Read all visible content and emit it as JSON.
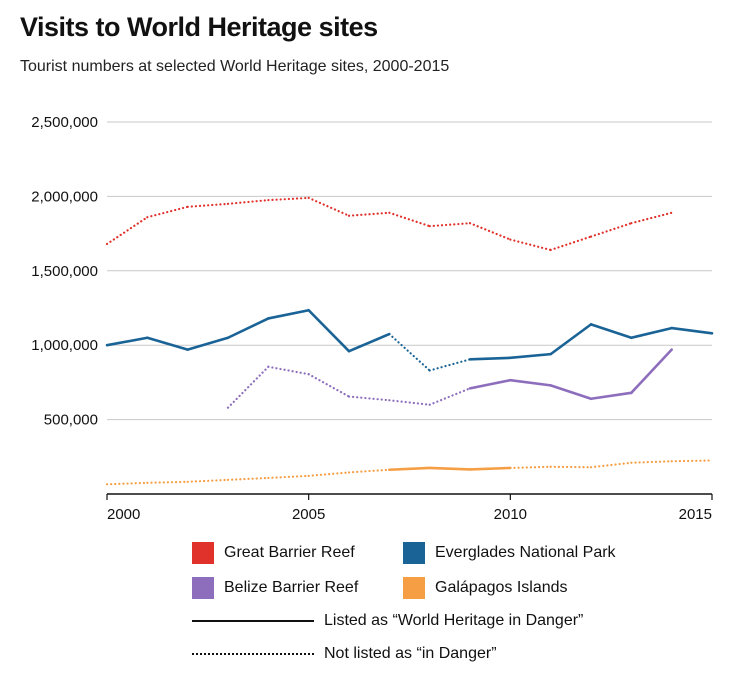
{
  "title": "Visits to World Heritage sites",
  "subtitle": "Tourist numbers at selected World Heritage sites, 2000-2015",
  "legend": {
    "great_barrier_reef": "Great Barrier Reef",
    "everglades": "Everglades National Park",
    "belize": "Belize Barrier Reef",
    "galapagos": "Galápagos Islands",
    "in_danger": "Listed as “World Heritage in Danger”",
    "not_in_danger": "Not listed as “in Danger”"
  },
  "chart_data": {
    "type": "line",
    "xlim": [
      2000,
      2015
    ],
    "ylim": [
      0,
      2500000
    ],
    "x_ticks": [
      2000,
      2005,
      2010,
      2015
    ],
    "x_tick_labels": [
      "2000",
      "2005",
      "2010",
      "2015"
    ],
    "y_ticks": [
      500000,
      1000000,
      1500000,
      2000000,
      2500000
    ],
    "y_tick_labels": [
      "500,000",
      "1,000,000",
      "1,500,000",
      "2,000,000",
      "2,500,000"
    ],
    "grid": true,
    "series": [
      {
        "name": "Great Barrier Reef",
        "color": "#e0312b",
        "points": [
          {
            "x": 2000,
            "y": 1680000,
            "style": "dotted"
          },
          {
            "x": 2001,
            "y": 1860000,
            "style": "dotted"
          },
          {
            "x": 2002,
            "y": 1930000,
            "style": "dotted"
          },
          {
            "x": 2003,
            "y": 1950000,
            "style": "dotted"
          },
          {
            "x": 2004,
            "y": 1975000,
            "style": "dotted"
          },
          {
            "x": 2005,
            "y": 1990000,
            "style": "dotted"
          },
          {
            "x": 2006,
            "y": 1870000,
            "style": "dotted"
          },
          {
            "x": 2007,
            "y": 1890000,
            "style": "dotted"
          },
          {
            "x": 2008,
            "y": 1800000,
            "style": "dotted"
          },
          {
            "x": 2009,
            "y": 1820000,
            "style": "dotted"
          },
          {
            "x": 2010,
            "y": 1710000,
            "style": "dotted"
          },
          {
            "x": 2011,
            "y": 1640000,
            "style": "dotted"
          },
          {
            "x": 2012,
            "y": 1730000,
            "style": "dotted"
          },
          {
            "x": 2013,
            "y": 1820000,
            "style": "dotted"
          },
          {
            "x": 2014,
            "y": 1890000
          }
        ]
      },
      {
        "name": "Everglades National Park",
        "color": "#1a6396",
        "points": [
          {
            "x": 2000,
            "y": 1000000,
            "style": "solid"
          },
          {
            "x": 2001,
            "y": 1050000,
            "style": "solid"
          },
          {
            "x": 2002,
            "y": 970000,
            "style": "solid"
          },
          {
            "x": 2003,
            "y": 1050000,
            "style": "solid"
          },
          {
            "x": 2004,
            "y": 1180000,
            "style": "solid"
          },
          {
            "x": 2005,
            "y": 1235000,
            "style": "solid"
          },
          {
            "x": 2006,
            "y": 960000,
            "style": "solid"
          },
          {
            "x": 2007,
            "y": 1075000,
            "style": "dotted"
          },
          {
            "x": 2008,
            "y": 830000,
            "style": "dotted"
          },
          {
            "x": 2009,
            "y": 905000,
            "style": "solid"
          },
          {
            "x": 2010,
            "y": 915000,
            "style": "solid"
          },
          {
            "x": 2011,
            "y": 940000,
            "style": "solid"
          },
          {
            "x": 2012,
            "y": 1140000,
            "style": "solid"
          },
          {
            "x": 2013,
            "y": 1050000,
            "style": "solid"
          },
          {
            "x": 2014,
            "y": 1115000,
            "style": "solid"
          },
          {
            "x": 2015,
            "y": 1080000
          }
        ]
      },
      {
        "name": "Belize Barrier Reef",
        "color": "#8d6ebc",
        "points": [
          {
            "x": 2003,
            "y": 580000,
            "style": "dotted"
          },
          {
            "x": 2004,
            "y": 855000,
            "style": "dotted"
          },
          {
            "x": 2005,
            "y": 805000,
            "style": "dotted"
          },
          {
            "x": 2006,
            "y": 655000,
            "style": "dotted"
          },
          {
            "x": 2007,
            "y": 630000,
            "style": "dotted"
          },
          {
            "x": 2008,
            "y": 600000,
            "style": "dotted"
          },
          {
            "x": 2009,
            "y": 710000,
            "style": "solid"
          },
          {
            "x": 2010,
            "y": 765000,
            "style": "solid"
          },
          {
            "x": 2011,
            "y": 730000,
            "style": "solid"
          },
          {
            "x": 2012,
            "y": 640000,
            "style": "solid"
          },
          {
            "x": 2013,
            "y": 680000,
            "style": "solid"
          },
          {
            "x": 2014,
            "y": 970000
          }
        ]
      },
      {
        "name": "Galápagos Islands",
        "color": "#f59e44",
        "points": [
          {
            "x": 2000,
            "y": 65000,
            "style": "dotted"
          },
          {
            "x": 2001,
            "y": 75000,
            "style": "dotted"
          },
          {
            "x": 2002,
            "y": 82000,
            "style": "dotted"
          },
          {
            "x": 2003,
            "y": 95000,
            "style": "dotted"
          },
          {
            "x": 2004,
            "y": 108000,
            "style": "dotted"
          },
          {
            "x": 2005,
            "y": 122000,
            "style": "dotted"
          },
          {
            "x": 2006,
            "y": 145000,
            "style": "dotted"
          },
          {
            "x": 2007,
            "y": 163000,
            "style": "solid"
          },
          {
            "x": 2008,
            "y": 175000,
            "style": "solid"
          },
          {
            "x": 2009,
            "y": 165000,
            "style": "solid"
          },
          {
            "x": 2010,
            "y": 175000,
            "style": "dotted"
          },
          {
            "x": 2011,
            "y": 183000,
            "style": "dotted"
          },
          {
            "x": 2012,
            "y": 180000,
            "style": "dotted"
          },
          {
            "x": 2013,
            "y": 210000,
            "style": "dotted"
          },
          {
            "x": 2014,
            "y": 220000,
            "style": "dotted"
          },
          {
            "x": 2015,
            "y": 225000
          }
        ]
      }
    ]
  }
}
